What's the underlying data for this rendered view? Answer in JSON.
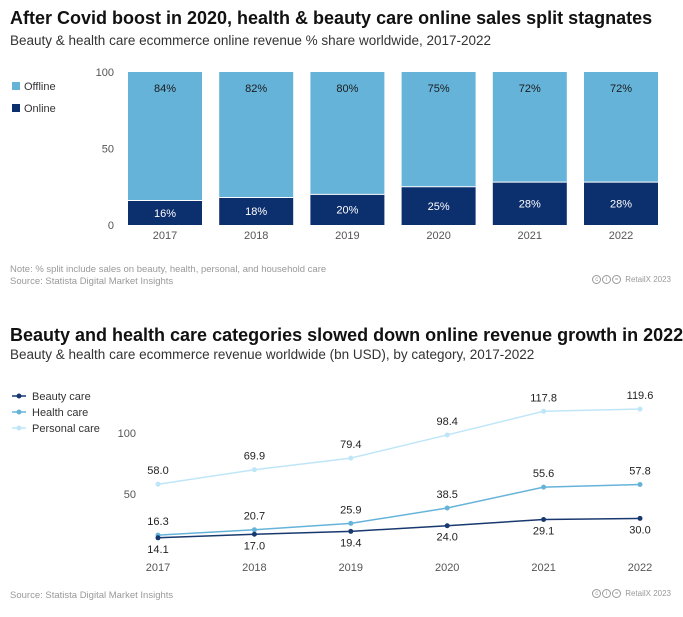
{
  "chart1": {
    "title": "After Covid boost in 2020, health & beauty care online sales split stagnates",
    "subtitle": "Beauty & health care ecommerce online revenue % share worldwide, 2017-2022",
    "note": "Note: % split include sales on beauty, health, personal, and household care",
    "source": "Source: Statista Digital Market Insights",
    "brand": "RetailX 2023"
  },
  "chart2": {
    "title": "Beauty and health care categories slowed down online revenue growth in 2022",
    "subtitle": "Beauty & health care ecommerce revenue worldwide (bn USD), by category, 2017-2022",
    "source": "Source: Statista Digital Market Insights",
    "brand": "RetailX 2023"
  },
  "colors": {
    "offline": "#66b3da",
    "online": "#0c2f6e",
    "beauty": "#18396f",
    "health": "#66b3da",
    "personal": "#bfe6f8"
  },
  "chart_data": [
    {
      "type": "bar",
      "stacked": true,
      "categories": [
        "2017",
        "2018",
        "2019",
        "2020",
        "2021",
        "2022"
      ],
      "series": [
        {
          "name": "Online",
          "values": [
            16,
            18,
            20,
            25,
            28,
            28
          ],
          "labels": [
            "16%",
            "18%",
            "20%",
            "25%",
            "28%",
            "28%"
          ]
        },
        {
          "name": "Offline",
          "values": [
            84,
            82,
            80,
            75,
            72,
            72
          ],
          "labels": [
            "84%",
            "82%",
            "80%",
            "75%",
            "72%",
            "72%"
          ]
        }
      ],
      "legend": [
        "Offline",
        "Online"
      ],
      "legend_position": "left",
      "yticks": [
        "0",
        "50",
        "100"
      ],
      "ylim": [
        0,
        100
      ],
      "grid": false
    },
    {
      "type": "line",
      "x": [
        "2017",
        "2018",
        "2019",
        "2020",
        "2021",
        "2022"
      ],
      "series": [
        {
          "name": "Beauty care",
          "values": [
            14.1,
            17.0,
            19.4,
            24.0,
            29.1,
            30.0
          ],
          "labels": [
            "14.1",
            "17.0",
            "19.4",
            "24.0",
            "29.1",
            "30.0"
          ]
        },
        {
          "name": "Health care",
          "values": [
            16.3,
            20.7,
            25.9,
            38.5,
            55.6,
            57.8
          ],
          "labels": [
            "16.3",
            "20.7",
            "25.9",
            "38.5",
            "55.6",
            "57.8"
          ]
        },
        {
          "name": "Personal care",
          "values": [
            58.0,
            69.9,
            79.4,
            98.4,
            117.8,
            119.6
          ],
          "labels": [
            "58.0",
            "69.9",
            "79.4",
            "98.4",
            "117.8",
            "119.6"
          ]
        }
      ],
      "legend_position": "top-left",
      "yticks": [
        "50",
        "100"
      ],
      "ylim": [
        0,
        130
      ],
      "grid": false
    }
  ]
}
